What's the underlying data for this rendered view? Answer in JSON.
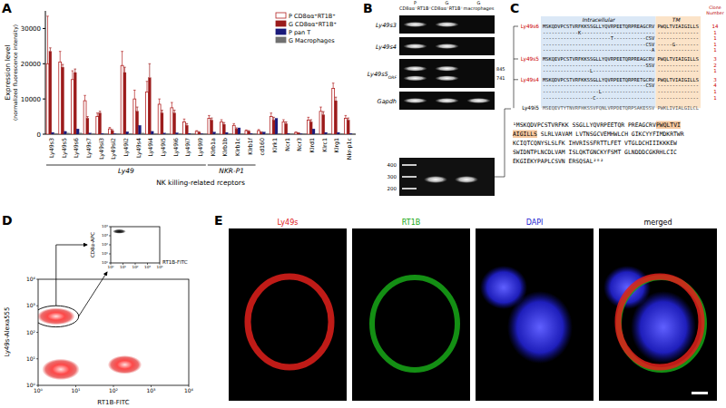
{
  "chart_data": [
    {
      "type": "bar",
      "panel": "A",
      "y_label": "Expression level",
      "y_label_sub": "(normalized fluorescence intensity)",
      "x_label": "NK killing-related rceptors",
      "categories": [
        "Ly49s3",
        "Ly49s5",
        "Ly49s6",
        "Ly49s7",
        "Ly49si3",
        "Ly49si2",
        "Ly49i2",
        "Ly49s4",
        "Ly49i4",
        "Ly49i5",
        "Ly49i6",
        "Ly49i7",
        "Ly49i9",
        "Klrb1a",
        "Klrb1b",
        "Klrb1c",
        "Klrb1f",
        "cd160",
        "Klrk1",
        "Ncr1",
        "Ncr3",
        "Klrd1",
        "Klrc1",
        "Klrg1",
        "Nkr-p1c"
      ],
      "groups": [
        {
          "label": "Ly49",
          "start": 0,
          "end": 12
        },
        {
          "label": "NKR-P1",
          "start": 13,
          "end": 16
        }
      ],
      "series": [
        {
          "name": "P CD8αα⁺RT1B⁺",
          "color": "#b22222",
          "marker": "open",
          "values": [
            20000,
            20500,
            15500,
            9500,
            5000,
            1500,
            19500,
            10000,
            12000,
            8500,
            7500,
            3500,
            800,
            4500,
            3500,
            2500,
            1000,
            1000,
            5000,
            3500,
            500,
            4000,
            6500,
            13000,
            4500
          ],
          "errors": [
            13500,
            3000,
            2500,
            1500,
            1000,
            400,
            4000,
            2500,
            3000,
            1500,
            1500,
            800,
            200,
            800,
            600,
            500,
            200,
            300,
            1000,
            600,
            100,
            800,
            1200,
            1500,
            800
          ]
        },
        {
          "name": "G CD8αα⁺RT1B⁺",
          "color": "#9b1b1b",
          "marker": "filled",
          "values": [
            23500,
            19000,
            17500,
            4500,
            6000,
            1000,
            17500,
            6500,
            16000,
            6000,
            6000,
            2500,
            500,
            4000,
            2800,
            1500,
            800,
            500,
            4000,
            3000,
            300,
            3500,
            5500,
            9500,
            4000
          ],
          "errors": [
            1000,
            800,
            1000,
            500,
            500,
            300,
            1500,
            1200,
            4000,
            800,
            800,
            500,
            200,
            600,
            500,
            300,
            200,
            200,
            800,
            500,
            100,
            600,
            900,
            1000,
            600
          ]
        },
        {
          "name": "P pan T",
          "color": "#1a1a7a",
          "marker": "filled",
          "values": [
            500,
            800,
            1500,
            300,
            200,
            100,
            700,
            2500,
            800,
            300,
            400,
            200,
            100,
            600,
            500,
            1800,
            200,
            600,
            4500,
            200,
            100,
            1500,
            500,
            500,
            200
          ]
        },
        {
          "name": "G Macrophages",
          "color": "#707070",
          "marker": "filled",
          "values": [
            200,
            300,
            300,
            100,
            100,
            100,
            200,
            300,
            200,
            100,
            200,
            100,
            100,
            100,
            100,
            100,
            100,
            100,
            200,
            100,
            100,
            200,
            100,
            200,
            100
          ]
        }
      ],
      "ylim": [
        0,
        35000
      ],
      "yticks": [
        0,
        10000,
        20000,
        30000
      ],
      "legend": "upper right",
      "grid": false
    },
    {
      "type": "scatter",
      "panel": "D",
      "log": true,
      "x_label": "RT1B-FITC",
      "y_label": "Ly49s-Alexa555",
      "xlim": [
        1,
        10000
      ],
      "ylim": [
        1,
        10000
      ],
      "xticks": [
        {
          "value": 1,
          "label": "10⁰"
        },
        {
          "value": 10,
          "label": "10¹"
        },
        {
          "value": 100,
          "label": "10²"
        },
        {
          "value": 1000,
          "label": "10³"
        },
        {
          "value": 10000,
          "label": "10⁴"
        }
      ],
      "yticks": [
        {
          "value": 1,
          "label": "10⁰"
        },
        {
          "value": 10,
          "label": "10¹"
        },
        {
          "value": 100,
          "label": "10²"
        },
        {
          "value": 1000,
          "label": "10³"
        },
        {
          "value": 10000,
          "label": "10⁴"
        }
      ],
      "populations": [
        {
          "x": 3,
          "y": 400,
          "spread_x": 0.5,
          "spread_y": 0.32
        },
        {
          "x": 4,
          "y": 4,
          "spread_x": 0.5,
          "spread_y": 0.4
        },
        {
          "x": 200,
          "y": 6,
          "spread_x": 0.45,
          "spread_y": 0.35
        }
      ],
      "gate": {
        "x": 3,
        "y": 400,
        "spread_x": 0.6,
        "spread_y": 0.4
      },
      "inset": {
        "type": "scatter",
        "log": true,
        "x_label": "RT1B-FITC",
        "y_label": "CD8α-APC",
        "xlim": [
          1,
          10000
        ],
        "ylim": [
          1,
          10000
        ],
        "xticks": [
          {
            "value": 1,
            "label": "10⁰"
          },
          {
            "value": 10,
            "label": "10¹"
          },
          {
            "value": 100,
            "label": "10²"
          },
          {
            "value": 1000,
            "label": "10³"
          },
          {
            "value": 10000,
            "label": "10⁴"
          }
        ],
        "yticks": [
          {
            "value": 1,
            "label": "10⁰"
          },
          {
            "value": 10,
            "label": "10¹"
          },
          {
            "value": 100,
            "label": "10²"
          },
          {
            "value": 1000,
            "label": "10³"
          },
          {
            "value": 10000,
            "label": "10⁴"
          }
        ],
        "populations": [
          {
            "x": 5,
            "y": 3000,
            "spread_x": 0.55,
            "spread_y": 0.25
          }
        ]
      }
    }
  ],
  "figure": {
    "B": {
      "panel": "B",
      "lanes": [
        "P CD8αα⁺RT1B⁺",
        "G CD8αα⁺RT1B⁺",
        "G macrophages"
      ],
      "rows": [
        {
          "name": "Ly49s3",
          "bands": [
            1,
            1,
            0
          ]
        },
        {
          "name": "Ly49s4",
          "bands": [
            1,
            1,
            0
          ]
        },
        {
          "name": "Ly49s5",
          "sub": "ORF",
          "bands": [
            2,
            2,
            0
          ]
        },
        {
          "name": "Gapdh",
          "bands": [
            1,
            1,
            1
          ]
        }
      ],
      "sizes": [
        "845",
        "741"
      ],
      "ladder": [
        400,
        300,
        200
      ]
    },
    "C": {
      "panel": "C",
      "regions": {
        "intracellular": "Intracellular",
        "tm": "TM"
      },
      "clone_header": "Clone Number",
      "groups": [
        {
          "name": "Ly49s6",
          "rows": [
            {
              "intra": "MSKQDVPCSTVRFKKSSGLLYQVRPEETQRPREAGCRV",
              "tm": "PWQLTVIAIGILLS",
              "count": 14
            },
            {
              "intra": "------------K-------------------------",
              "tm": "--------------",
              "count": 1
            },
            {
              "intra": "-----------------------T-----------CSV",
              "tm": "--------------",
              "count": 1
            },
            {
              "intra": "-----------------------------------CSV",
              "tm": "-----G--------",
              "count": 1
            },
            {
              "intra": "-------------------------------------A",
              "tm": "--------------",
              "count": 1
            }
          ]
        },
        {
          "name": "Ly49s5",
          "rows": [
            {
              "intra": "MSKQEVPCSTVRFKKSSGLLYQVRPEETQRPREAGCRV",
              "tm": "PWQLTVIAIGILLS",
              "count": 3
            },
            {
              "intra": "-----------------------------------SSV",
              "tm": "--------------",
              "count": 2
            },
            {
              "intra": "----------------L---------------------",
              "tm": "--------------",
              "count": 1
            }
          ]
        },
        {
          "name": "Ly49s4",
          "rows": [
            {
              "intra": "MSKQDVPCSTVRFKKSSGLLYQVRPEETQRPRETGCRV",
              "tm": "PWQLTVIAIGILLS",
              "count": 3
            },
            {
              "intra": "-----------------------------------CSV",
              "tm": "--------------",
              "count": 4
            },
            {
              "intra": "-------------------L------------------",
              "tm": "--------------",
              "count": 1
            },
            {
              "intra": "-----------------C--------------------",
              "tm": "--------------",
              "count": 1
            }
          ]
        }
      ],
      "reference": {
        "name": "Ly49i5",
        "intra": "MSEQEVTYTNVRFHKSSVFQNLVRPDETQRPSAKESSV",
        "tm": "PWKLIVIALGILCL"
      },
      "sequence": [
        [
          {
            "t": "¹MSKQDVPCSTVRFKK SSGLLYQVRPEETQR PREAGCRV",
            "tm": false
          },
          {
            "t": "PWQLTVI",
            "tm": true
          }
        ],
        [
          {
            "t": "AIGILLS",
            "tm": true
          },
          {
            "t": " SLRLVAVAM LVTNSGCVEMHWLCH GIKCYYFIMDKRTWR",
            "tm": false
          }
        ],
        [
          {
            "t": "KCIQTCQNYSLSLFK IHVRISSFRTTLFET VTGLDCHIIIKKKEW",
            "tm": false
          }
        ],
        [
          {
            "t": "SWIDNTPLNCDLVAM ISLQKTGNCKYFSMT GLNDDDCGKRHLCIC",
            "tm": false
          }
        ],
        [
          {
            "t": "EKGIEKYPAPLCSVN ERSQSAL²⁰²",
            "tm": false
          }
        ]
      ]
    },
    "E": {
      "panel": "E",
      "channels": [
        {
          "name": "Ly49s",
          "color": "#e0201b"
        },
        {
          "name": "RT1B",
          "color": "#17a817"
        },
        {
          "name": "DAPI",
          "color": "#2222d0"
        },
        {
          "name": "merged",
          "color": "#000000",
          "merged": true
        }
      ]
    }
  }
}
